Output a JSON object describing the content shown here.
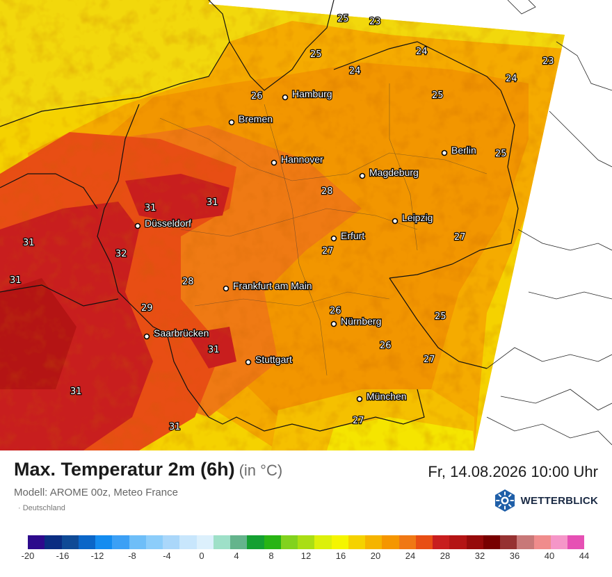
{
  "header": {
    "title": "Max. Temperatur 2m (6h)",
    "unit": "(in °C)",
    "datetime": "Fr, 14.08.2026 10:00 Uhr",
    "model": "Modell: AROME 00z, Meteo France",
    "region": "· Deutschland"
  },
  "brand": {
    "name": "WETTERBLICK",
    "icon": "wetterblick-logo-icon"
  },
  "cities": [
    {
      "name": "Hamburg"
    },
    {
      "name": "Bremen"
    },
    {
      "name": "Hannover"
    },
    {
      "name": "Berlin"
    },
    {
      "name": "Magdeburg"
    },
    {
      "name": "Düsseldorf"
    },
    {
      "name": "Leipzig"
    },
    {
      "name": "Erfurt"
    },
    {
      "name": "Frankfurt am Main"
    },
    {
      "name": "Nürnberg"
    },
    {
      "name": "Saarbrücken"
    },
    {
      "name": "Stuttgart"
    },
    {
      "name": "München"
    }
  ],
  "temperature_labels": [
    "25",
    "23",
    "25",
    "24",
    "23",
    "24",
    "26",
    "25",
    "24",
    "25",
    "31",
    "31",
    "28",
    "31",
    "32",
    "27",
    "27",
    "31",
    "28",
    "29",
    "26",
    "25",
    "26",
    "31",
    "27",
    "31",
    "27",
    "31"
  ],
  "legend": {
    "colors": [
      "#2d0a8c",
      "#0a2d82",
      "#0f4a96",
      "#0a66c8",
      "#148cf0",
      "#3ca0f5",
      "#6ebef8",
      "#8ccdfa",
      "#aad7fa",
      "#c8e6fc",
      "#dcf0fc",
      "#9ee0c8",
      "#64b48c",
      "#14a032",
      "#28b414",
      "#82d21e",
      "#aade14",
      "#dcf00a",
      "#f5f500",
      "#f5d200",
      "#f5b400",
      "#f59600",
      "#f07814",
      "#e84e14",
      "#c81e1e",
      "#b41414",
      "#960a0a",
      "#780000",
      "#963232",
      "#c87878",
      "#f08c8c",
      "#f596c8",
      "#e650b4"
    ],
    "ticks": [
      "-20",
      "-16",
      "-12",
      "-8",
      "-4",
      "0",
      "4",
      "8",
      "12",
      "16",
      "20",
      "24",
      "28",
      "32",
      "36",
      "40",
      "44"
    ]
  }
}
